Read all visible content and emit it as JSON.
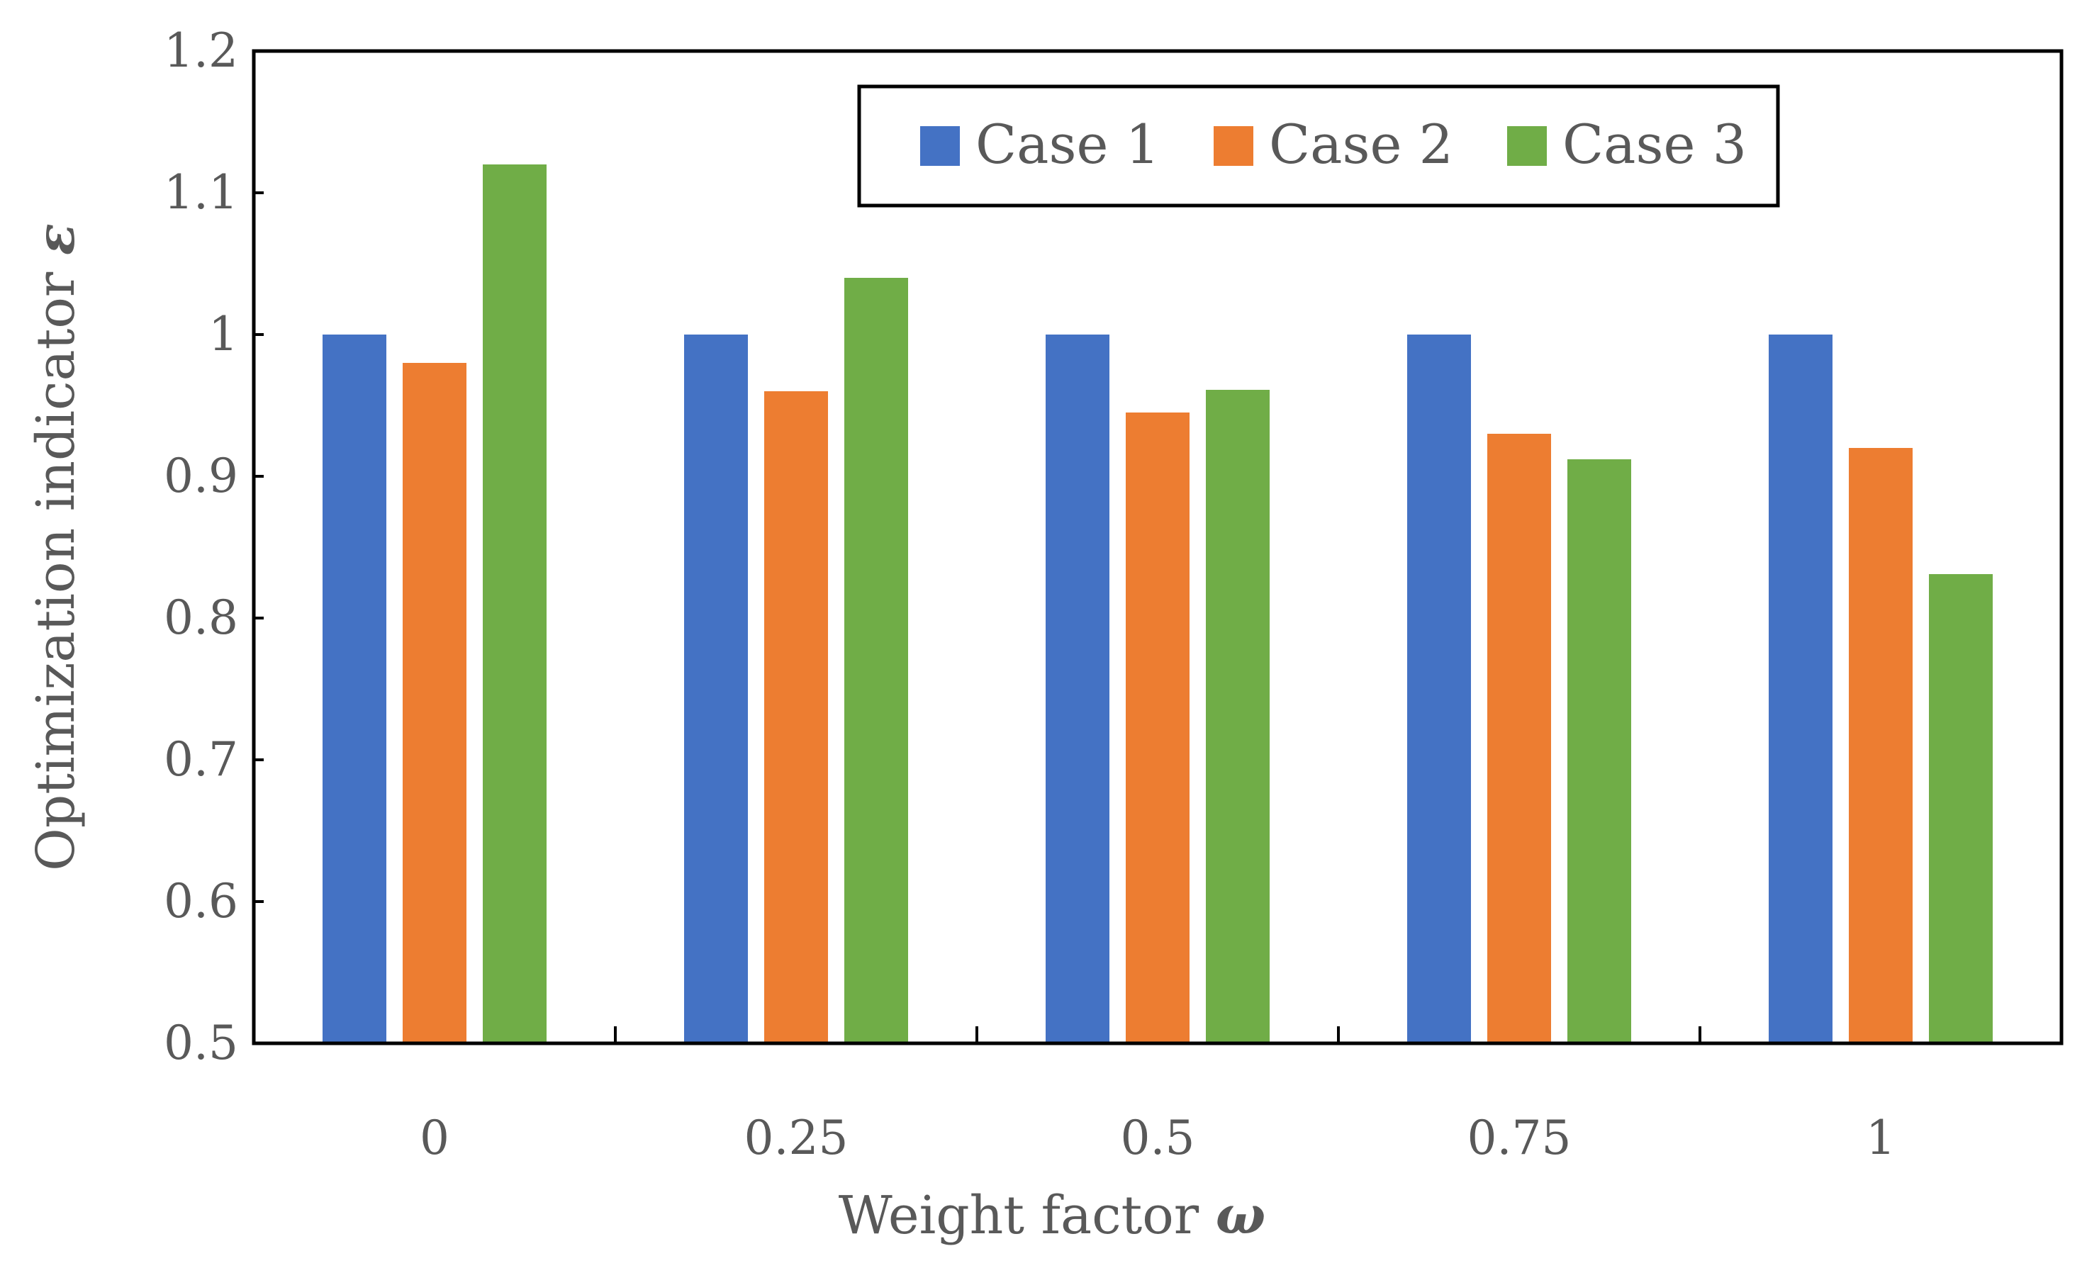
{
  "chart_data": {
    "type": "bar",
    "title": "",
    "categories": [
      "0",
      "0.25",
      "0.5",
      "0.75",
      "1"
    ],
    "series": [
      {
        "name": "Case 1",
        "color": "#4472C4",
        "values": [
          1.0,
          1.0,
          1.0,
          1.0,
          1.0
        ]
      },
      {
        "name": "Case 2",
        "color": "#ED7D31",
        "values": [
          0.98,
          0.96,
          0.945,
          0.93,
          0.92
        ]
      },
      {
        "name": "Case 3",
        "color": "#70AD47",
        "values": [
          1.12,
          1.04,
          0.961,
          0.912,
          0.831
        ]
      }
    ],
    "xlabel": "Weight factor",
    "xlabel_symbol": "ω",
    "ylabel": "Optimization indicator",
    "ylabel_symbol": "ε",
    "ylim": [
      0.5,
      1.2
    ],
    "yticks": [
      "0.5",
      "0.6",
      "0.7",
      "0.8",
      "0.9",
      "1",
      "1.1",
      "1.2"
    ],
    "ytick_values": [
      0.5,
      0.6,
      0.7,
      0.8,
      0.9,
      1.0,
      1.1,
      1.2
    ],
    "grid": false,
    "legend_position": "top-right"
  }
}
